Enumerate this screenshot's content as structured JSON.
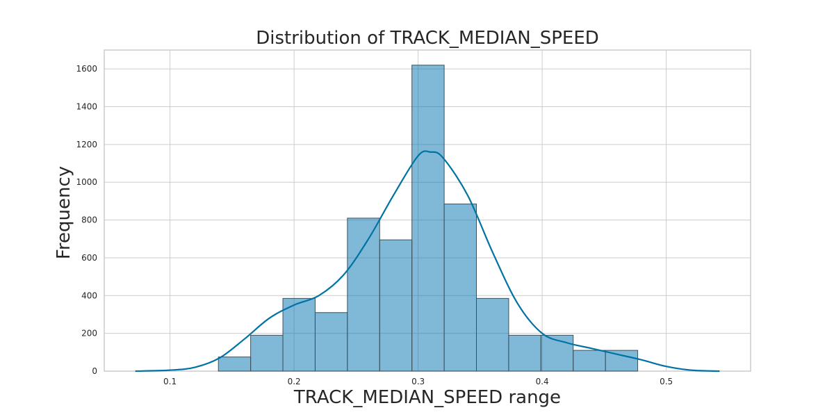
{
  "chart_data": {
    "type": "bar",
    "title": "Distribution of TRACK_MEDIAN_SPEED",
    "xlabel": "TRACK_MEDIAN_SPEED range",
    "ylabel": "Frequency",
    "xlim": [
      0.047,
      0.568
    ],
    "ylim": [
      0,
      1700
    ],
    "xticks": [
      0.1,
      0.2,
      0.3,
      0.4,
      0.5
    ],
    "xtick_labels": [
      "0.1",
      "0.2",
      "0.3",
      "0.4",
      "0.5"
    ],
    "yticks": [
      0,
      200,
      400,
      600,
      800,
      1000,
      1200,
      1400,
      1600
    ],
    "ytick_labels": [
      "0",
      "200",
      "400",
      "600",
      "800",
      "1000",
      "1200",
      "1400",
      "1600"
    ],
    "grid": true,
    "bins": [
      {
        "x0": 0.139,
        "x1": 0.165,
        "value": 75
      },
      {
        "x0": 0.165,
        "x1": 0.191,
        "value": 190
      },
      {
        "x0": 0.191,
        "x1": 0.217,
        "value": 385
      },
      {
        "x0": 0.217,
        "x1": 0.243,
        "value": 310
      },
      {
        "x0": 0.243,
        "x1": 0.269,
        "value": 810
      },
      {
        "x0": 0.269,
        "x1": 0.295,
        "value": 695
      },
      {
        "x0": 0.295,
        "x1": 0.321,
        "value": 1620
      },
      {
        "x0": 0.321,
        "x1": 0.347,
        "value": 885
      },
      {
        "x0": 0.347,
        "x1": 0.373,
        "value": 385
      },
      {
        "x0": 0.373,
        "x1": 0.399,
        "value": 190
      },
      {
        "x0": 0.399,
        "x1": 0.425,
        "value": 190
      },
      {
        "x0": 0.425,
        "x1": 0.451,
        "value": 110
      },
      {
        "x0": 0.451,
        "x1": 0.477,
        "value": 110
      }
    ],
    "kde": {
      "x": [
        0.072,
        0.1,
        0.12,
        0.14,
        0.16,
        0.18,
        0.2,
        0.22,
        0.24,
        0.26,
        0.28,
        0.3,
        0.31,
        0.32,
        0.34,
        0.36,
        0.38,
        0.4,
        0.42,
        0.44,
        0.46,
        0.48,
        0.5,
        0.52,
        0.543
      ],
      "y": [
        0,
        5,
        20,
        70,
        170,
        280,
        350,
        400,
        510,
        700,
        930,
        1140,
        1160,
        1130,
        930,
        630,
        360,
        200,
        150,
        120,
        90,
        60,
        25,
        5,
        0
      ]
    },
    "colors": {
      "bar": "#0173b2",
      "kde": "#0072a3"
    }
  }
}
